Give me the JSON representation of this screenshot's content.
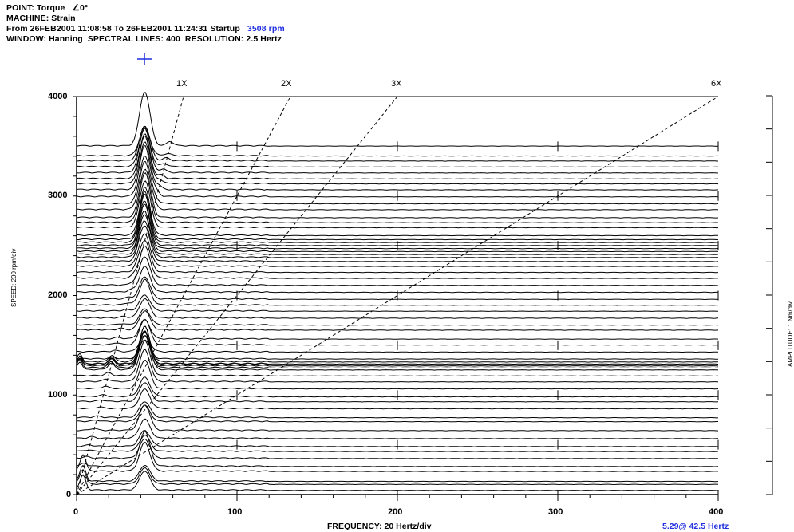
{
  "header": {
    "line1": "POINT: Torque   ∠0°",
    "line2": "MACHINE: Strain",
    "line3_pre": "From 26FEB2001 11:08:58 To 26FEB2001 11:24:31 Startup",
    "line3_rpm": "3508 rpm",
    "line4": "WINDOW: Hanning  SPECTRAL LINES: 400  RESOLUTION: 2.5 Hertz"
  },
  "colors": {
    "accent": "#1f2ee0",
    "ink": "#000000"
  },
  "chart_data": {
    "type": "waterfall",
    "xlabel": "FREQUENCY: 20 Hertz/div",
    "ylabel": "SPEED: 200 rpm/div",
    "zlabel": "AMPLITUDE: 1 Nm/div",
    "xlim": [
      0,
      400
    ],
    "ylim": [
      0,
      4000
    ],
    "x_ticks": [
      "0",
      "100",
      "200",
      "300",
      "400"
    ],
    "y_ticks": [
      "0",
      "1000",
      "2000",
      "3000",
      "4000"
    ],
    "order_lines": [
      {
        "label": "1X",
        "order": 1
      },
      {
        "label": "2X",
        "order": 2
      },
      {
        "label": "3X",
        "order": 3
      },
      {
        "label": "6X",
        "order": 6
      }
    ],
    "dominant_peak_hz": 42.5,
    "speeds_rpm": [
      40,
      100,
      130,
      230,
      280,
      360,
      430,
      480,
      560,
      640,
      730,
      770,
      860,
      930,
      980,
      1060,
      1130,
      1190,
      1250,
      1270,
      1290,
      1300,
      1310,
      1330,
      1360,
      1430,
      1500,
      1560,
      1650,
      1700,
      1770,
      1840,
      1900,
      1960,
      2030,
      2100,
      2170,
      2230,
      2290,
      2340,
      2380,
      2410,
      2440,
      2470,
      2500,
      2530,
      2560,
      2600,
      2680,
      2730,
      2780,
      2860,
      2920,
      2990,
      3060,
      3120,
      3170,
      3230,
      3290,
      3350,
      3400,
      3500
    ],
    "peak_amplitude_nm": [
      0.6,
      0.5,
      0.5,
      0.9,
      1.1,
      0.6,
      0.5,
      0.5,
      0.6,
      0.8,
      0.5,
      0.5,
      0.6,
      0.6,
      0.6,
      0.9,
      1.0,
      1.1,
      1.2,
      1.0,
      1.1,
      1.2,
      1.0,
      1.1,
      0.6,
      0.5,
      0.8,
      0.6,
      0.6,
      0.5,
      0.6,
      0.5,
      0.8,
      0.7,
      0.8,
      0.9,
      1.0,
      1.0,
      1.0,
      1.1,
      1.1,
      1.2,
      1.2,
      1.3,
      1.3,
      1.4,
      1.4,
      1.4,
      1.4,
      1.5,
      1.5,
      1.5,
      1.5,
      1.6,
      1.5,
      1.5,
      1.4,
      1.4,
      1.2,
      1.1,
      0.9,
      1.7
    ],
    "cursor_readout": "5.29@ 42.5 Hertz"
  }
}
